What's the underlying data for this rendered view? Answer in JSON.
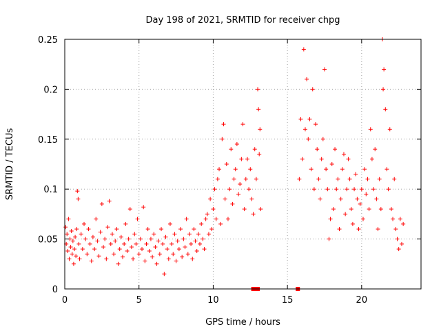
{
  "chart_data": {
    "type": "scatter",
    "title": "Day 198 of 2021, SRMTID for receiver chpg",
    "xlabel": "GPS time / hours",
    "ylabel": "SRMTID / TECUs",
    "xlim": [
      0,
      24
    ],
    "ylim": [
      0,
      0.25
    ],
    "x_ticks": [
      0,
      5,
      10,
      15,
      20
    ],
    "x_tick_labels": [
      "0",
      "5",
      "10",
      "15",
      "20"
    ],
    "y_ticks": [
      0,
      0.05,
      0.1,
      0.15,
      0.2,
      0.25
    ],
    "y_tick_labels": [
      "0",
      "0.05",
      "0.1",
      "0.15",
      "0.2",
      "0.25"
    ],
    "grid": true,
    "marker": "+",
    "color": "#ff0000",
    "series": [
      {
        "name": "SRMTID",
        "points": [
          [
            0.05,
            0.062
          ],
          [
            0.1,
            0.045
          ],
          [
            0.15,
            0.055
          ],
          [
            0.2,
            0.038
          ],
          [
            0.25,
            0.07
          ],
          [
            0.3,
            0.03
          ],
          [
            0.35,
            0.05
          ],
          [
            0.4,
            0.042
          ],
          [
            0.45,
            0.058
          ],
          [
            0.5,
            0.035
          ],
          [
            0.55,
            0.048
          ],
          [
            0.6,
            0.025
          ],
          [
            0.65,
            0.04
          ],
          [
            0.7,
            0.052
          ],
          [
            0.75,
            0.033
          ],
          [
            0.8,
            0.06
          ],
          [
            0.85,
            0.098
          ],
          [
            0.9,
            0.09
          ],
          [
            0.95,
            0.045
          ],
          [
            1.0,
            0.03
          ],
          [
            1.1,
            0.055
          ],
          [
            1.2,
            0.04
          ],
          [
            1.3,
            0.065
          ],
          [
            1.4,
            0.05
          ],
          [
            1.5,
            0.035
          ],
          [
            1.6,
            0.06
          ],
          [
            1.7,
            0.045
          ],
          [
            1.8,
            0.028
          ],
          [
            1.9,
            0.052
          ],
          [
            2.0,
            0.04
          ],
          [
            2.1,
            0.07
          ],
          [
            2.2,
            0.048
          ],
          [
            2.3,
            0.033
          ],
          [
            2.4,
            0.057
          ],
          [
            2.5,
            0.085
          ],
          [
            2.6,
            0.042
          ],
          [
            2.7,
            0.05
          ],
          [
            2.8,
            0.03
          ],
          [
            2.9,
            0.062
          ],
          [
            3.0,
            0.088
          ],
          [
            3.1,
            0.045
          ],
          [
            3.2,
            0.055
          ],
          [
            3.3,
            0.035
          ],
          [
            3.4,
            0.048
          ],
          [
            3.5,
            0.06
          ],
          [
            3.6,
            0.025
          ],
          [
            3.7,
            0.04
          ],
          [
            3.8,
            0.052
          ],
          [
            3.9,
            0.032
          ],
          [
            4.0,
            0.045
          ],
          [
            4.1,
            0.065
          ],
          [
            4.2,
            0.038
          ],
          [
            4.3,
            0.05
          ],
          [
            4.4,
            0.08
          ],
          [
            4.5,
            0.042
          ],
          [
            4.6,
            0.03
          ],
          [
            4.7,
            0.055
          ],
          [
            4.8,
            0.045
          ],
          [
            4.9,
            0.07
          ],
          [
            5.0,
            0.035
          ],
          [
            5.1,
            0.05
          ],
          [
            5.2,
            0.04
          ],
          [
            5.3,
            0.082
          ],
          [
            5.4,
            0.028
          ],
          [
            5.5,
            0.045
          ],
          [
            5.6,
            0.06
          ],
          [
            5.7,
            0.038
          ],
          [
            5.8,
            0.05
          ],
          [
            5.9,
            0.032
          ],
          [
            6.0,
            0.055
          ],
          [
            6.1,
            0.042
          ],
          [
            6.2,
            0.025
          ],
          [
            6.3,
            0.048
          ],
          [
            6.4,
            0.035
          ],
          [
            6.5,
            0.06
          ],
          [
            6.6,
            0.045
          ],
          [
            6.7,
            0.015
          ],
          [
            6.8,
            0.052
          ],
          [
            6.9,
            0.04
          ],
          [
            7.0,
            0.03
          ],
          [
            7.1,
            0.065
          ],
          [
            7.2,
            0.045
          ],
          [
            7.3,
            0.035
          ],
          [
            7.4,
            0.055
          ],
          [
            7.5,
            0.028
          ],
          [
            7.6,
            0.048
          ],
          [
            7.7,
            0.04
          ],
          [
            7.8,
            0.06
          ],
          [
            7.9,
            0.032
          ],
          [
            8.0,
            0.05
          ],
          [
            8.1,
            0.042
          ],
          [
            8.2,
            0.07
          ],
          [
            8.3,
            0.035
          ],
          [
            8.4,
            0.055
          ],
          [
            8.5,
            0.045
          ],
          [
            8.6,
            0.03
          ],
          [
            8.7,
            0.06
          ],
          [
            8.8,
            0.048
          ],
          [
            8.9,
            0.038
          ],
          [
            9.0,
            0.055
          ],
          [
            9.1,
            0.045
          ],
          [
            9.2,
            0.065
          ],
          [
            9.3,
            0.05
          ],
          [
            9.4,
            0.04
          ],
          [
            9.5,
            0.07
          ],
          [
            9.6,
            0.075
          ],
          [
            9.7,
            0.055
          ],
          [
            9.8,
            0.09
          ],
          [
            9.9,
            0.06
          ],
          [
            10.0,
            0.08
          ],
          [
            10.1,
            0.1
          ],
          [
            10.2,
            0.07
          ],
          [
            10.3,
            0.11
          ],
          [
            10.4,
            0.12
          ],
          [
            10.5,
            0.065
          ],
          [
            10.6,
            0.15
          ],
          [
            10.7,
            0.165
          ],
          [
            10.8,
            0.09
          ],
          [
            10.9,
            0.125
          ],
          [
            11.0,
            0.07
          ],
          [
            11.1,
            0.1
          ],
          [
            11.2,
            0.14
          ],
          [
            11.3,
            0.085
          ],
          [
            11.4,
            0.11
          ],
          [
            11.5,
            0.12
          ],
          [
            11.6,
            0.145
          ],
          [
            11.7,
            0.095
          ],
          [
            11.8,
            0.105
          ],
          [
            11.9,
            0.13
          ],
          [
            12.0,
            0.165
          ],
          [
            12.1,
            0.08
          ],
          [
            12.2,
            0.11
          ],
          [
            12.3,
            0.13
          ],
          [
            12.4,
            0.1
          ],
          [
            12.5,
            0.12
          ],
          [
            12.6,
            0.09
          ],
          [
            12.7,
            0.075
          ],
          [
            12.8,
            0.14
          ],
          [
            12.9,
            0.11
          ],
          [
            13.0,
            0.2
          ],
          [
            13.05,
            0.18
          ],
          [
            13.1,
            0.135
          ],
          [
            13.15,
            0.16
          ],
          [
            13.2,
            0.08
          ],
          [
            15.8,
            0.11
          ],
          [
            15.9,
            0.17
          ],
          [
            16.0,
            0.13
          ],
          [
            16.1,
            0.24
          ],
          [
            16.2,
            0.16
          ],
          [
            16.3,
            0.21
          ],
          [
            16.4,
            0.15
          ],
          [
            16.5,
            0.17
          ],
          [
            16.6,
            0.12
          ],
          [
            16.7,
            0.2
          ],
          [
            16.8,
            0.1
          ],
          [
            16.9,
            0.165
          ],
          [
            17.0,
            0.14
          ],
          [
            17.1,
            0.11
          ],
          [
            17.2,
            0.09
          ],
          [
            17.3,
            0.13
          ],
          [
            17.4,
            0.15
          ],
          [
            17.5,
            0.22
          ],
          [
            17.6,
            0.12
          ],
          [
            17.7,
            0.1
          ],
          [
            17.8,
            0.05
          ],
          [
            17.9,
            0.07
          ],
          [
            18.0,
            0.125
          ],
          [
            18.1,
            0.08
          ],
          [
            18.2,
            0.14
          ],
          [
            18.3,
            0.1
          ],
          [
            18.4,
            0.11
          ],
          [
            18.5,
            0.06
          ],
          [
            18.6,
            0.09
          ],
          [
            18.7,
            0.12
          ],
          [
            18.8,
            0.135
          ],
          [
            18.9,
            0.075
          ],
          [
            19.0,
            0.1
          ],
          [
            19.1,
            0.13
          ],
          [
            19.2,
            0.11
          ],
          [
            19.3,
            0.08
          ],
          [
            19.4,
            0.065
          ],
          [
            19.5,
            0.1
          ],
          [
            19.6,
            0.115
          ],
          [
            19.7,
            0.09
          ],
          [
            19.8,
            0.06
          ],
          [
            19.9,
            0.085
          ],
          [
            20.0,
            0.1
          ],
          [
            20.1,
            0.07
          ],
          [
            20.2,
            0.12
          ],
          [
            20.3,
            0.095
          ],
          [
            20.4,
            0.11
          ],
          [
            20.5,
            0.08
          ],
          [
            20.6,
            0.16
          ],
          [
            20.7,
            0.13
          ],
          [
            20.8,
            0.1
          ],
          [
            20.9,
            0.14
          ],
          [
            21.0,
            0.09
          ],
          [
            21.1,
            0.06
          ],
          [
            21.2,
            0.11
          ],
          [
            21.3,
            0.08
          ],
          [
            21.4,
            0.25
          ],
          [
            21.45,
            0.2
          ],
          [
            21.5,
            0.22
          ],
          [
            21.6,
            0.18
          ],
          [
            21.7,
            0.12
          ],
          [
            21.8,
            0.1
          ],
          [
            21.9,
            0.16
          ],
          [
            22.0,
            0.08
          ],
          [
            22.1,
            0.07
          ],
          [
            22.2,
            0.11
          ],
          [
            22.3,
            0.06
          ],
          [
            22.4,
            0.05
          ],
          [
            22.5,
            0.04
          ],
          [
            22.6,
            0.07
          ],
          [
            22.7,
            0.045
          ],
          [
            22.8,
            0.065
          ]
        ]
      }
    ],
    "zero_markers": [
      12.7,
      12.8,
      13.0,
      15.7
    ]
  }
}
